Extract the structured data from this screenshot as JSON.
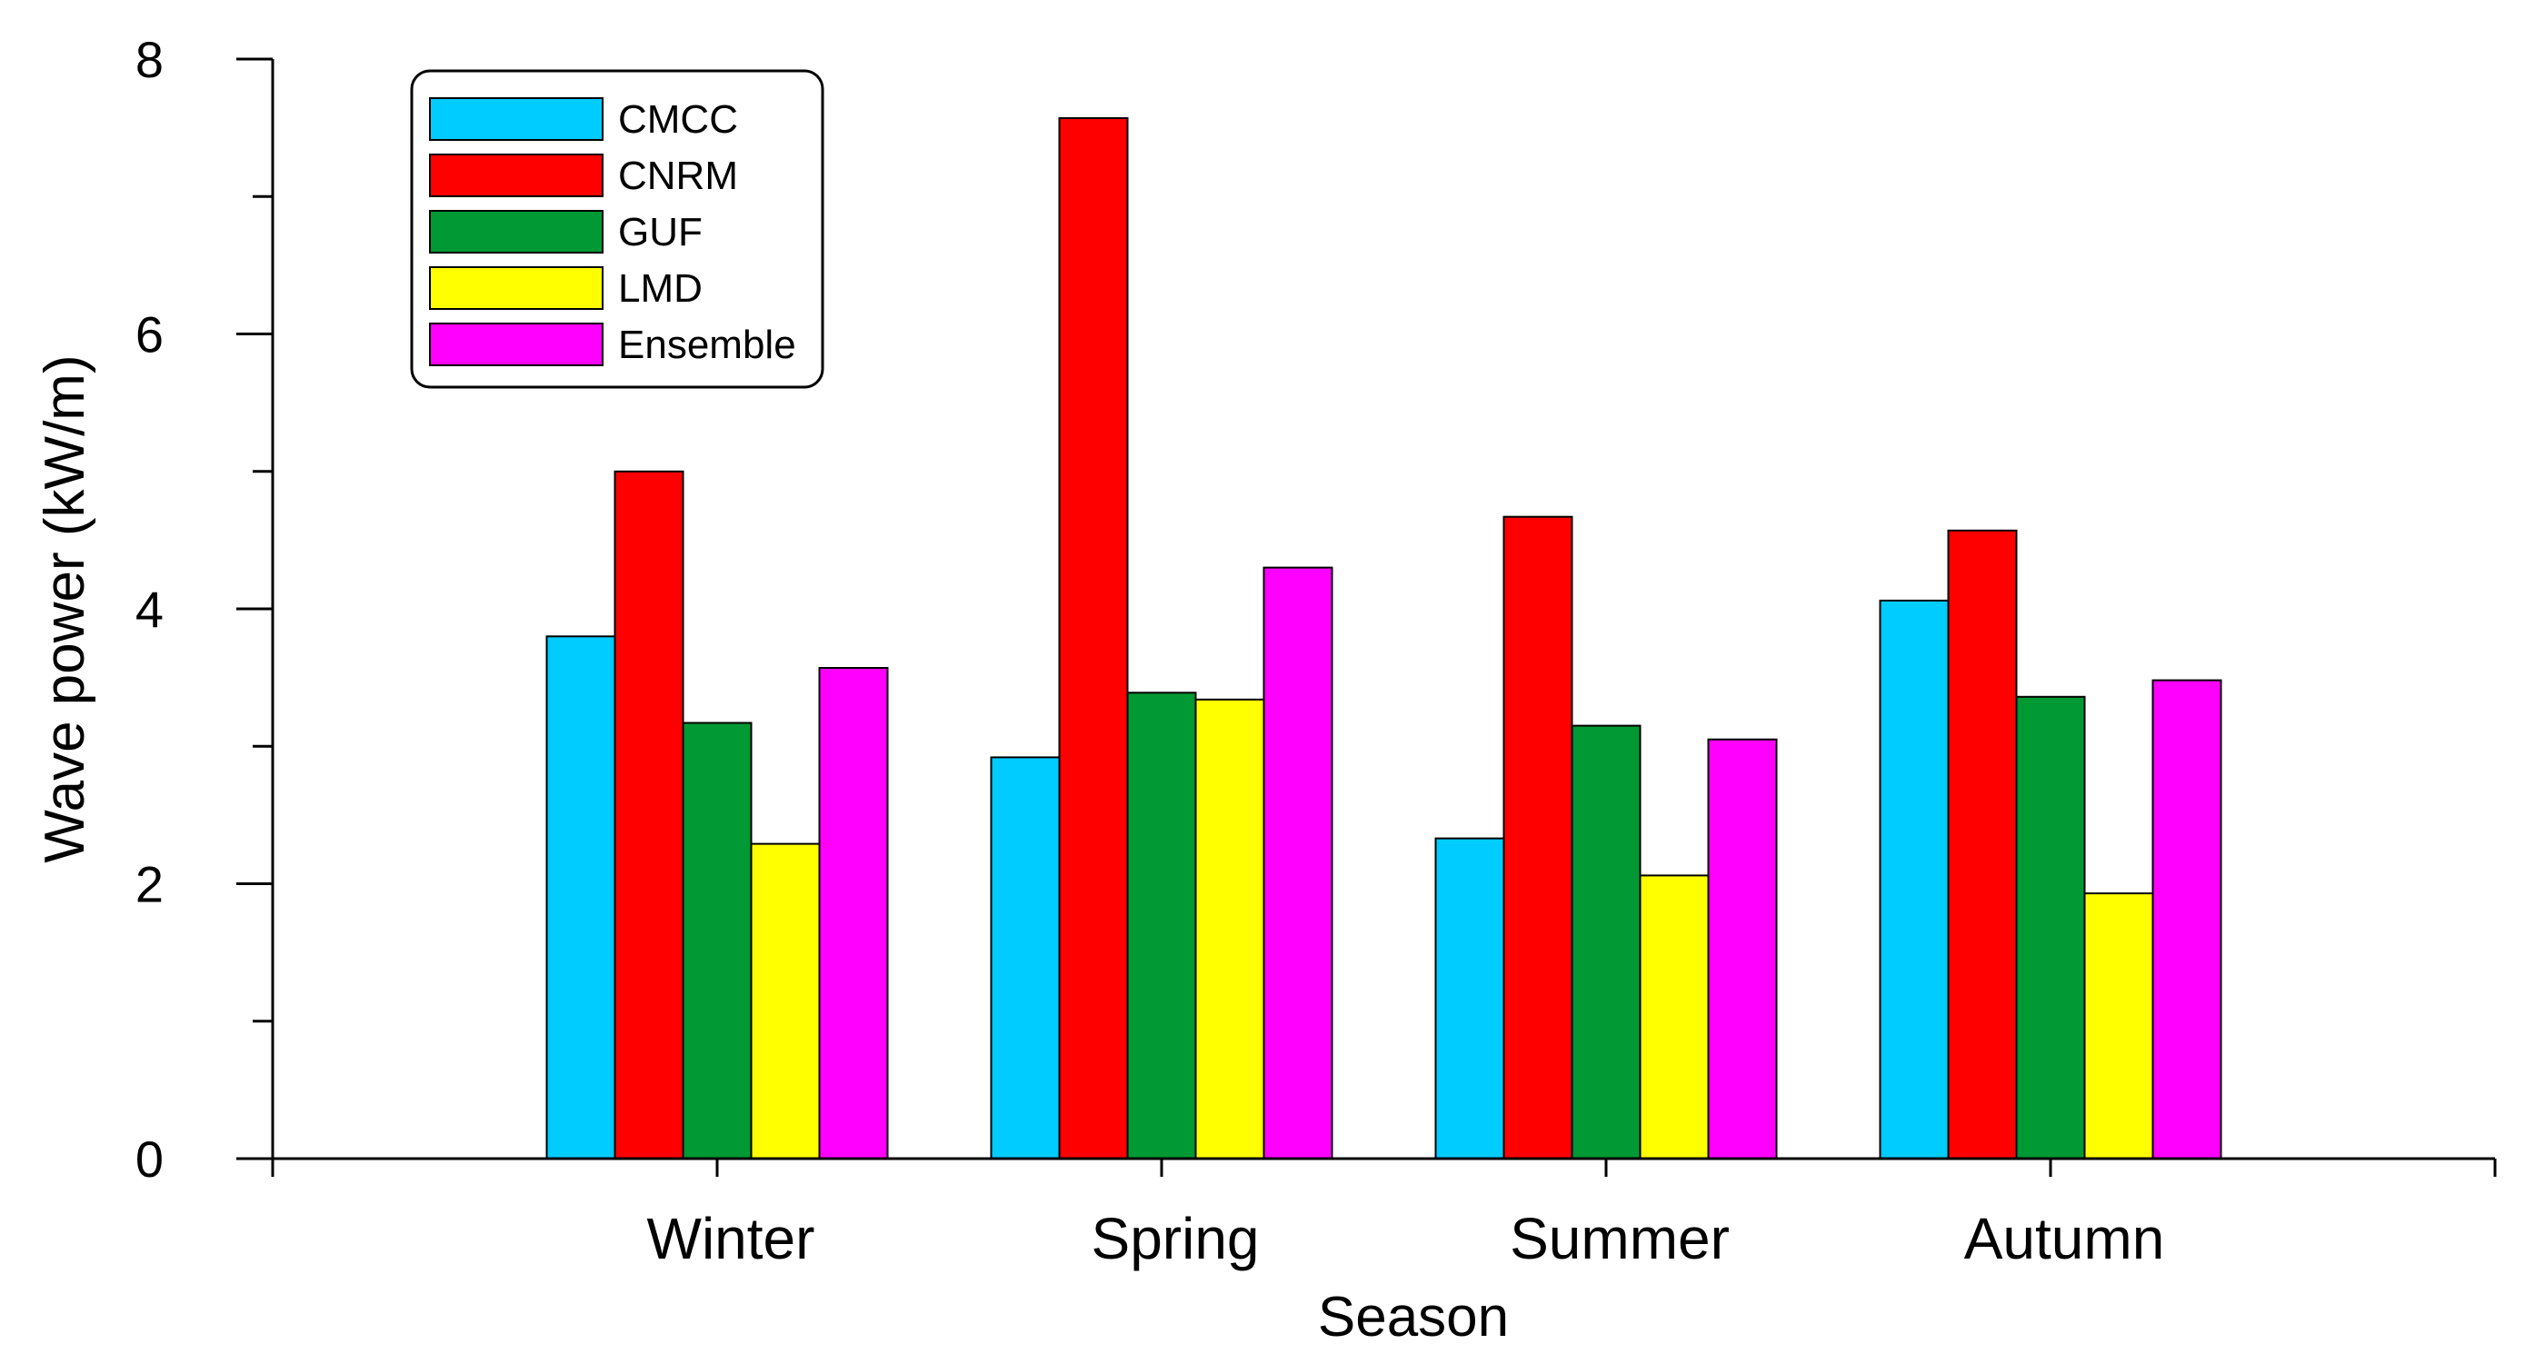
{
  "chart_data": {
    "type": "bar",
    "xlabel": "Season",
    "ylabel": "Wave power (kW/m)",
    "ylim": [
      0,
      8
    ],
    "yticks": [
      0,
      2,
      4,
      6,
      8
    ],
    "categories": [
      "Winter",
      "Spring",
      "Summer",
      "Autumn"
    ],
    "series": [
      {
        "name": "CMCC",
        "color": "#00ccff",
        "values": [
          3.8,
          2.92,
          2.33,
          4.06
        ]
      },
      {
        "name": "CNRM",
        "color": "#ff0000",
        "values": [
          5.0,
          7.57,
          4.67,
          4.57
        ]
      },
      {
        "name": "GUF",
        "color": "#009933",
        "values": [
          3.17,
          3.39,
          3.15,
          3.36
        ]
      },
      {
        "name": "LMD",
        "color": "#ffff00",
        "values": [
          2.29,
          3.34,
          2.06,
          1.93
        ]
      },
      {
        "name": "Ensemble",
        "color": "#ff00ff",
        "values": [
          3.57,
          4.3,
          3.05,
          3.48
        ]
      }
    ],
    "legend_position": "top-left",
    "grid": false
  }
}
